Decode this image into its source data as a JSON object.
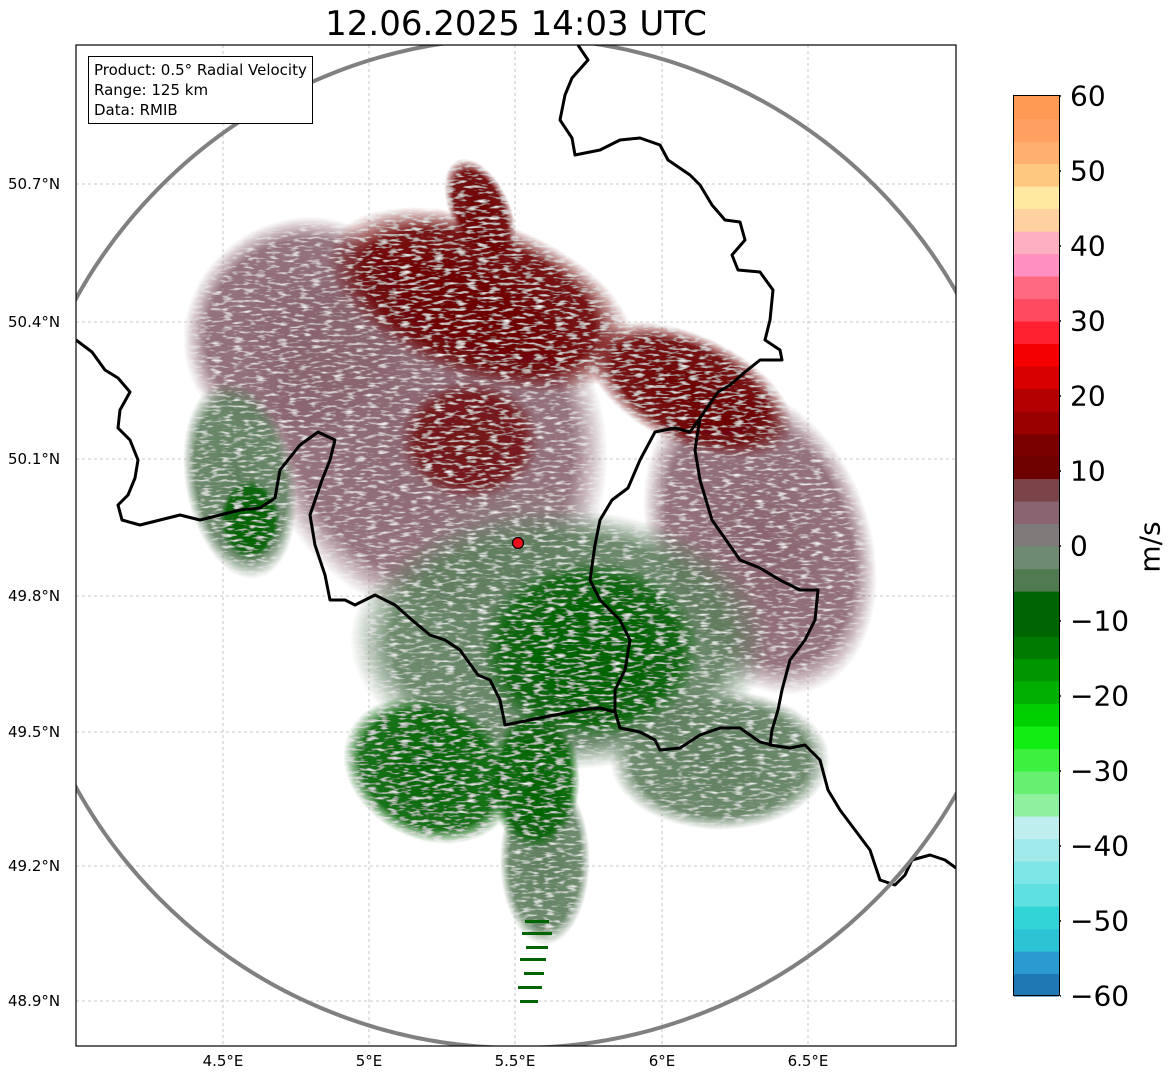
{
  "title": "12.06.2025 14:03 UTC",
  "info": {
    "product": "Product: 0.5° Radial Velocity",
    "range": "Range: 125 km",
    "data": "Data: RMIB"
  },
  "axes": {
    "lat_ticks": [
      "50.7°N",
      "50.4°N",
      "50.1°N",
      "49.8°N",
      "49.5°N",
      "49.2°N",
      "48.9°N"
    ],
    "lon_ticks": [
      "4.5°E",
      "5°E",
      "5.5°E",
      "6°E",
      "6.5°E"
    ]
  },
  "radar": {
    "site_lon": 5.505,
    "site_lat": 49.915,
    "range_km": 125,
    "site_color": "#e8101a"
  },
  "colorbar": {
    "label": "m/s",
    "min": -60,
    "max": 60,
    "ticks": [
      "60",
      "50",
      "40",
      "30",
      "20",
      "10",
      "0",
      "−10",
      "−20",
      "−30",
      "−40",
      "−50",
      "−60"
    ]
  },
  "colors": {
    "outbound_dark": "#6e0000",
    "outbound_mauve": "#8a6470",
    "near_zero_gray": "#7f7f7f",
    "inbound_sage": "#5e7e5e",
    "inbound_dark": "#006400",
    "ring": "#808080",
    "border": "#000000"
  }
}
